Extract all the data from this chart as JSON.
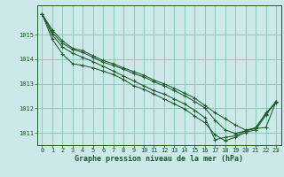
{
  "xlabel": "Graphe pression niveau de la mer (hPa)",
  "bg_color": "#cce8e8",
  "grid_color": "#88ccbb",
  "line_color": "#1a5c2a",
  "xlim": [
    -0.5,
    23.5
  ],
  "ylim": [
    1010.5,
    1016.2
  ],
  "yticks": [
    1011,
    1012,
    1013,
    1014,
    1015
  ],
  "xticks": [
    0,
    1,
    2,
    3,
    4,
    5,
    6,
    7,
    8,
    9,
    10,
    11,
    12,
    13,
    14,
    15,
    16,
    17,
    18,
    19,
    20,
    21,
    22,
    23
  ],
  "series": [
    [
      1015.85,
      1015.2,
      1014.75,
      1014.45,
      1014.35,
      1014.15,
      1013.95,
      1013.82,
      1013.65,
      1013.5,
      1013.35,
      1013.15,
      1013.0,
      1012.82,
      1012.62,
      1012.42,
      1012.12,
      1011.82,
      1011.58,
      1011.32,
      1011.12,
      1011.18,
      1011.22,
      1012.28
    ],
    [
      1015.85,
      1015.1,
      1014.65,
      1014.4,
      1014.28,
      1014.08,
      1013.88,
      1013.75,
      1013.6,
      1013.42,
      1013.28,
      1013.08,
      1012.92,
      1012.72,
      1012.52,
      1012.28,
      1012.02,
      1011.52,
      1011.12,
      1010.98,
      1011.08,
      1011.18,
      1011.82,
      1012.22
    ],
    [
      1015.85,
      1015.0,
      1014.5,
      1014.25,
      1014.08,
      1013.9,
      1013.72,
      1013.52,
      1013.32,
      1013.12,
      1012.92,
      1012.72,
      1012.58,
      1012.38,
      1012.18,
      1011.92,
      1011.62,
      1010.72,
      1010.82,
      1010.88,
      1011.08,
      1011.22,
      1011.78,
      1012.28
    ],
    [
      1015.85,
      1014.82,
      1014.22,
      1013.82,
      1013.75,
      1013.65,
      1013.52,
      1013.38,
      1013.18,
      1012.92,
      1012.78,
      1012.58,
      1012.38,
      1012.18,
      1011.98,
      1011.68,
      1011.42,
      1010.92,
      1010.68,
      1010.82,
      1011.02,
      1011.12,
      1011.72,
      1012.28
    ]
  ],
  "tick_fontsize": 5.0,
  "label_fontsize": 6.0
}
